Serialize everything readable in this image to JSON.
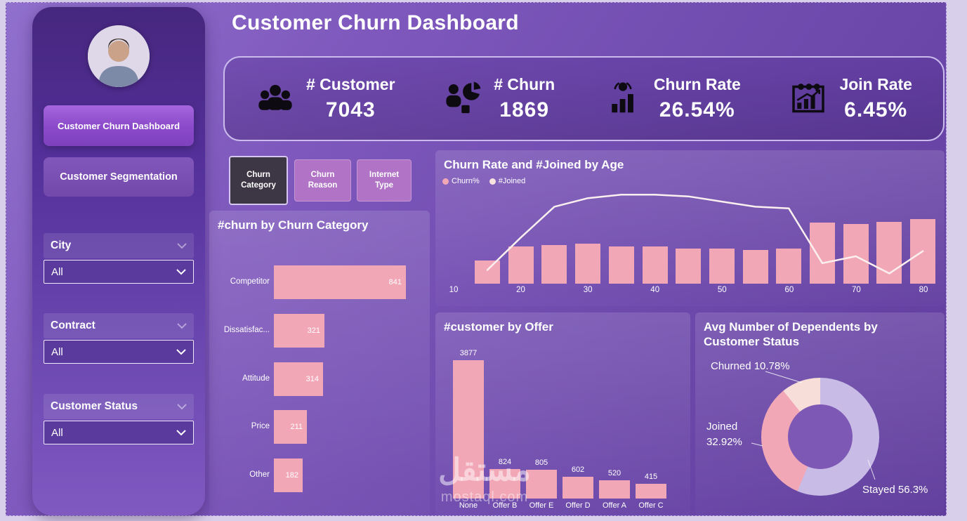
{
  "page": {
    "title": "Customer Churn Dashboard"
  },
  "sidebar": {
    "nav": [
      {
        "label": "Customer Churn Dashboard",
        "active": true
      },
      {
        "label": "Customer Segmentation",
        "active": false
      }
    ],
    "filters": [
      {
        "label": "City",
        "value": "All"
      },
      {
        "label": "Contract",
        "value": "All"
      },
      {
        "label": "Customer Status",
        "value": "All"
      }
    ]
  },
  "kpis": [
    {
      "label": "# Customer",
      "value": "7043",
      "icon": "customers-icon"
    },
    {
      "label": "# Churn",
      "value": "1869",
      "icon": "churn-icon"
    },
    {
      "label": "Churn Rate",
      "value": "26.54%",
      "icon": "churn-rate-icon"
    },
    {
      "label": "Join Rate",
      "value": "6.45%",
      "icon": "join-rate-icon"
    }
  ],
  "tabs": [
    {
      "label": "Churn Category",
      "active": true
    },
    {
      "label": "Churn Reason",
      "active": false
    },
    {
      "label": "Internet Type",
      "active": false
    }
  ],
  "watermark": {
    "word": "مستقل",
    "site": "mostaql.com"
  },
  "colors": {
    "accent_pink": "#f2a7b7",
    "active_tab_bg": "#3d3745",
    "inactive_tab_bg": "#b173c5",
    "kpi_icon": "#0d0a12"
  },
  "chart_data": [
    {
      "id": "churn-by-category",
      "type": "bar",
      "orientation": "horizontal",
      "title": "#churn by Churn Category",
      "categories": [
        "Competitor",
        "Dissatisfac...",
        "Attitude",
        "Price",
        "Other"
      ],
      "values": [
        841,
        321,
        314,
        211,
        182
      ],
      "bar_color": "#f2a7b7",
      "xlim": [
        0,
        900
      ]
    },
    {
      "id": "churn-rate-and-joined-by-age",
      "type": "combo",
      "title": "Churn Rate and #Joined by Age",
      "x_ticks": [
        "10",
        "20",
        "30",
        "40",
        "50",
        "60",
        "70",
        "80"
      ],
      "series": [
        {
          "name": "Churn%",
          "type": "bar",
          "color": "#f2a7b7",
          "legend_color": "#f2a7b7",
          "values": [
            36,
            58,
            60,
            62,
            58,
            58,
            54,
            54,
            52,
            54,
            95,
            92,
            96,
            100
          ]
        },
        {
          "name": "#Joined",
          "type": "line",
          "color": "#fbf0ef",
          "legend_color": "#f8e3e0",
          "values": [
            8,
            27,
            45,
            50,
            52,
            52,
            51,
            48,
            45,
            44,
            12,
            16,
            6,
            19
          ]
        }
      ]
    },
    {
      "id": "customer-by-offer",
      "type": "bar",
      "orientation": "vertical",
      "title": "#customer by Offer",
      "categories": [
        "None",
        "Offer B",
        "Offer E",
        "Offer D",
        "Offer A",
        "Offer C"
      ],
      "values": [
        3877,
        824,
        805,
        602,
        520,
        415
      ],
      "bar_color": "#f2a7b7",
      "ylim": [
        0,
        4000
      ]
    },
    {
      "id": "avg-dependents-by-customer-status",
      "type": "pie",
      "donut": true,
      "title": "Avg Number of Dependents by Customer Status",
      "slices": [
        {
          "label": "Stayed",
          "pct": 56.3,
          "display": "Stayed 56.3%",
          "color": "#c8bce7"
        },
        {
          "label": "Joined",
          "pct": 32.92,
          "display": "Joined 32.92%",
          "color": "#f2a7b7"
        },
        {
          "label": "Churned",
          "pct": 10.78,
          "display": "Churned 10.78%",
          "color": "#f7ded8"
        }
      ]
    }
  ]
}
